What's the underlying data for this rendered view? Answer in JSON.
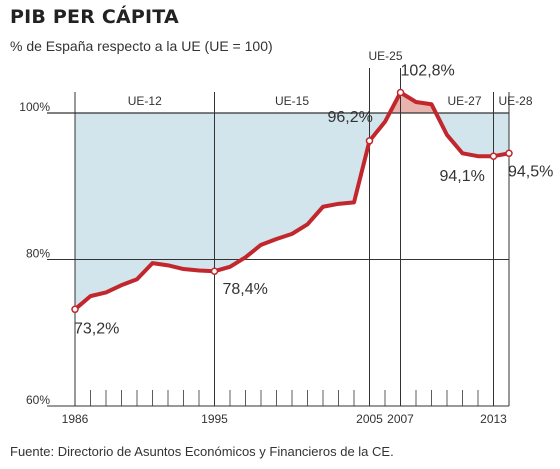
{
  "header": {
    "title": "PIB PER CÁPITA",
    "subtitle": "% de España respecto a la UE (UE = 100)"
  },
  "footer": {
    "source": "Fuente: Directorio de Asuntos Económicos y Financieros de la CE."
  },
  "colors": {
    "line": "#c1272d",
    "area_below": "#d2e4ec",
    "area_above": "#e8b4ad",
    "grid": "#333333"
  },
  "chart_data": {
    "type": "line",
    "title": "PIB PER CÁPITA",
    "subtitle": "% de España respecto a la UE (UE = 100)",
    "xlabel": "",
    "ylabel": "",
    "xlim": [
      1986,
      2014
    ],
    "ylim": [
      60,
      100
    ],
    "grid": true,
    "reference_line": 100,
    "x": [
      1986,
      1987,
      1988,
      1989,
      1990,
      1991,
      1992,
      1993,
      1994,
      1995,
      1996,
      1997,
      1998,
      1999,
      2000,
      2001,
      2002,
      2003,
      2004,
      2005,
      2006,
      2007,
      2008,
      2009,
      2010,
      2011,
      2012,
      2013,
      2014
    ],
    "series": [
      {
        "values": [
          73.2,
          75.0,
          75.5,
          76.5,
          77.3,
          79.5,
          79.2,
          78.7,
          78.5,
          78.4,
          79.0,
          80.3,
          82.0,
          82.8,
          83.5,
          84.8,
          87.2,
          87.6,
          87.8,
          96.2,
          98.8,
          102.8,
          101.5,
          101.2,
          97.0,
          94.5,
          94.1,
          94.1,
          94.5
        ]
      }
    ],
    "x_ticks": [
      1986,
      1995,
      2005,
      2007,
      2013
    ],
    "y_ticks": [
      {
        "value": 60,
        "label": "60%"
      },
      {
        "value": 80,
        "label": "80%"
      },
      {
        "value": 100,
        "label": "100%"
      }
    ],
    "annotations": [
      {
        "x": 1986,
        "y": 73.2,
        "label": "73,2%"
      },
      {
        "x": 1995,
        "y": 78.4,
        "label": "78,4%"
      },
      {
        "x": 2005,
        "y": 96.2,
        "label": "96,2%"
      },
      {
        "x": 2007,
        "y": 102.8,
        "label": "102,8%"
      },
      {
        "x": 2013,
        "y": 94.1,
        "label": "94,1%"
      },
      {
        "x": 2014,
        "y": 94.5,
        "label": "94,5%"
      }
    ],
    "periods": [
      {
        "label": "UE-12",
        "from": 1986,
        "to": 1995
      },
      {
        "label": "UE-15",
        "from": 1995,
        "to": 2005
      },
      {
        "label": "UE-25",
        "from": 2005,
        "to": 2007
      },
      {
        "label": "UE-27",
        "from": 2007,
        "to": 2013
      },
      {
        "label": "UE-28",
        "from": 2013,
        "to": 2014
      }
    ]
  }
}
